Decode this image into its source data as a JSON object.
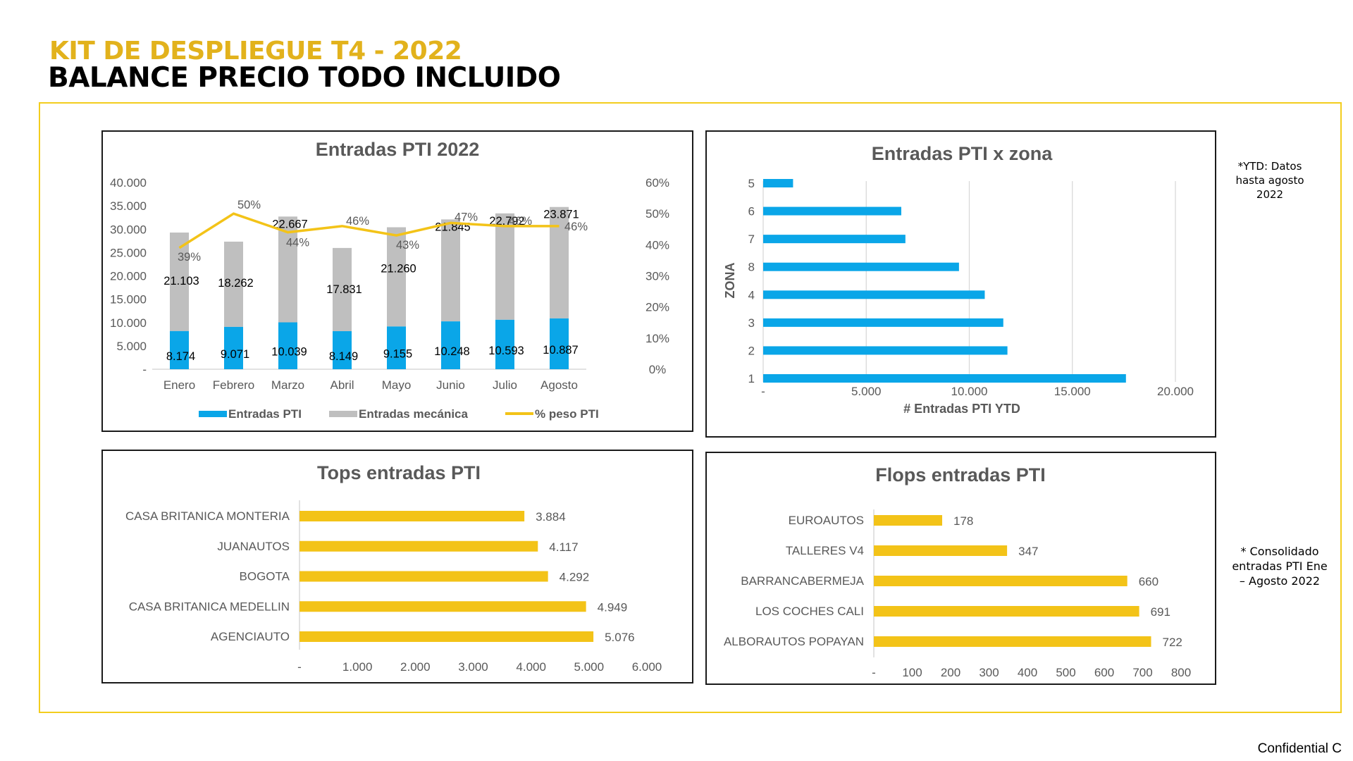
{
  "header": {
    "kicker": "KIT DE DESPLIEGUE T4 - 2022",
    "title": "BALANCE PRECIO TODO INCLUIDO"
  },
  "notes": {
    "ytd": "*YTD: Datos hasta agosto 2022",
    "consolidado": "* Consolidado entradas PTI Ene – Agosto 2022"
  },
  "footer": {
    "confidential": "Confidential C"
  },
  "colors": {
    "accent": "#f3c318",
    "pti_blue": "#0aa6e8",
    "mecanica_grey": "#bfbfbf",
    "frame_yellow": "#f3cd1e"
  },
  "chart_data": [
    {
      "id": "entradas_2022",
      "type": "bar",
      "title": "Entradas PTI 2022",
      "categories": [
        "Enero",
        "Febrero",
        "Marzo",
        "Abril",
        "Mayo",
        "Junio",
        "Julio",
        "Agosto"
      ],
      "series": [
        {
          "name": "Entradas PTI",
          "kind": "bar",
          "values": [
            8174,
            9071,
            10039,
            8149,
            9155,
            10248,
            10593,
            10887
          ],
          "labels": [
            "8.174",
            "9.071",
            "10.039",
            "8.149",
            "9.155",
            "10.248",
            "10.593",
            "10.887"
          ]
        },
        {
          "name": "Entradas mecánica",
          "kind": "bar",
          "values": [
            21103,
            18262,
            22667,
            17831,
            21260,
            21845,
            22792,
            23871
          ],
          "labels": [
            "21.103",
            "18.262",
            "22.667",
            "17.831",
            "21.260",
            "21.845",
            "22.792",
            "23.871"
          ]
        },
        {
          "name": "% peso PTI",
          "kind": "line",
          "values": [
            39,
            50,
            44,
            46,
            43,
            47,
            46,
            46
          ],
          "labels": [
            "39%",
            "50%",
            "44%",
            "46%",
            "43%",
            "47%",
            "46%",
            "46%"
          ]
        }
      ],
      "ylim": [
        0,
        40000
      ],
      "yticks": [
        "-",
        "5.000",
        "10.000",
        "15.000",
        "20.000",
        "25.000",
        "30.000",
        "35.000",
        "40.000"
      ],
      "y2lim": [
        0,
        60
      ],
      "y2ticks": [
        "0%",
        "10%",
        "20%",
        "30%",
        "40%",
        "50%",
        "60%"
      ],
      "legend": "bottom"
    },
    {
      "id": "zona",
      "type": "bar",
      "orientation": "horizontal",
      "title": "Entradas PTI x zona",
      "xlabel": "# Entradas PTI YTD",
      "ylabel": "ZONA",
      "categories": [
        "5",
        "6",
        "7",
        "8",
        "4",
        "3",
        "2",
        "1"
      ],
      "values": [
        1450,
        6700,
        6900,
        9500,
        10750,
        11650,
        11850,
        17600
      ],
      "xlim": [
        0,
        20000
      ],
      "xticks": [
        "-",
        "5.000",
        "10.000",
        "15.000",
        "20.000"
      ],
      "grid": true
    },
    {
      "id": "tops",
      "type": "bar",
      "orientation": "horizontal",
      "title": "Tops entradas PTI",
      "categories": [
        "CASA BRITANICA MONTERIA",
        "JUANAUTOS",
        "BOGOTA",
        "CASA BRITANICA MEDELLIN",
        "AGENCIAUTO"
      ],
      "values": [
        3884,
        4117,
        4292,
        4949,
        5076
      ],
      "labels": [
        "3.884",
        "4.117",
        "4.292",
        "4.949",
        "5.076"
      ],
      "xlim": [
        0,
        6000
      ],
      "xticks": [
        "-",
        "1.000",
        "2.000",
        "3.000",
        "4.000",
        "5.000",
        "6.000"
      ]
    },
    {
      "id": "flops",
      "type": "bar",
      "orientation": "horizontal",
      "title": "Flops entradas PTI",
      "categories": [
        "EUROAUTOS",
        "TALLERES V4",
        "BARRANCABERMEJA",
        "LOS COCHES CALI",
        "ALBORAUTOS POPAYAN"
      ],
      "values": [
        178,
        347,
        660,
        691,
        722
      ],
      "labels": [
        "178",
        "347",
        "660",
        "691",
        "722"
      ],
      "xlim": [
        0,
        800
      ],
      "xticks": [
        "-",
        "100",
        "200",
        "300",
        "400",
        "500",
        "600",
        "700",
        "800"
      ]
    }
  ]
}
